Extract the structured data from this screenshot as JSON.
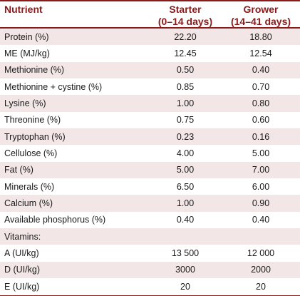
{
  "header": {
    "nutrient": "Nutrient",
    "starter_line1": "Starter",
    "starter_line2": "(0–14 days)",
    "grower_line1": "Grower",
    "grower_line2": "(14–41 days)"
  },
  "rows": [
    {
      "nutrient": "Protein (%)",
      "starter": "22.20",
      "grower": "18.80"
    },
    {
      "nutrient": "ME (MJ/kg)",
      "starter": "12.45",
      "grower": "12.54"
    },
    {
      "nutrient": "Methionine (%)",
      "starter": "0.50",
      "grower": "0.40"
    },
    {
      "nutrient": "Methionine + cystine (%)",
      "starter": "0.85",
      "grower": "0.70"
    },
    {
      "nutrient": "Lysine (%)",
      "starter": "1.00",
      "grower": "0.80"
    },
    {
      "nutrient": "Threonine (%)",
      "starter": "0.75",
      "grower": "0.60"
    },
    {
      "nutrient": "Tryptophan (%)",
      "starter": "0.23",
      "grower": "0.16"
    },
    {
      "nutrient": "Cellulose (%)",
      "starter": "4.00",
      "grower": "5.00"
    },
    {
      "nutrient": "Fat (%)",
      "starter": "5.00",
      "grower": "7.00"
    },
    {
      "nutrient": "Minerals (%)",
      "starter": "6.50",
      "grower": "6.00"
    },
    {
      "nutrient": "Calcium (%)",
      "starter": "1.00",
      "grower": "0.90"
    },
    {
      "nutrient": "Available phosphorus (%)",
      "starter": "0.40",
      "grower": "0.40"
    },
    {
      "nutrient": "Vitamins:",
      "starter": "",
      "grower": ""
    },
    {
      "nutrient": "A (UI/kg)",
      "starter": "13 500",
      "grower": "12 000"
    },
    {
      "nutrient": "D (UI/kg)",
      "starter": "3000",
      "grower": "2000"
    },
    {
      "nutrient": "E (UI/kg)",
      "starter": "20",
      "grower": "20"
    }
  ],
  "colors": {
    "accent": "#8b1a1a",
    "row_shade": "#f3e6e6"
  }
}
